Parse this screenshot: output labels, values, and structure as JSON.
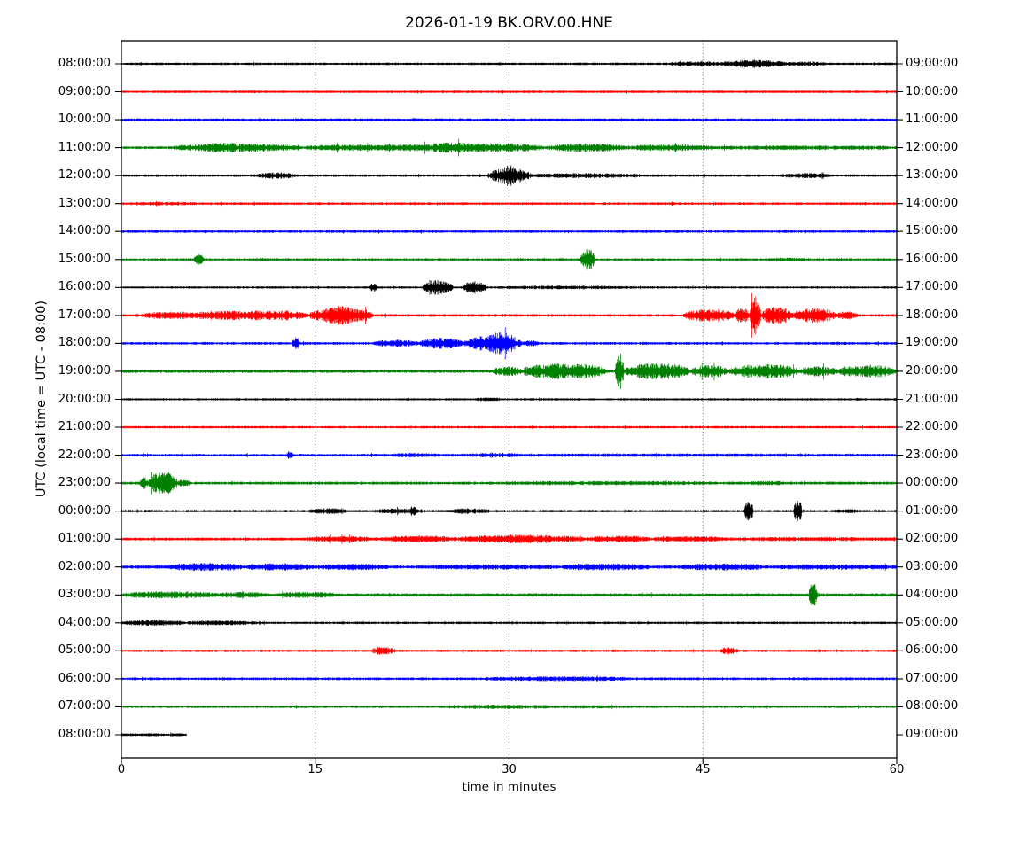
{
  "chart": {
    "title": "2026-01-19 BK.ORV.00.HNE",
    "xlabel": "time in minutes",
    "ylabel": "UTC (local time = UTC - 08:00)"
  },
  "colors": {
    "black": "#000000",
    "red": "#ff0000",
    "blue": "#0000ff",
    "green": "#008000"
  },
  "chart_data": {
    "type": "line",
    "subtype": "seismogram-dayplot",
    "title": "2026-01-19 BK.ORV.00.HNE",
    "date": "2026-01-19",
    "seed_id": "BK.ORV.00.HNE",
    "xlabel": "time in minutes",
    "ylabel": "UTC (local time = UTC - 08:00)",
    "xlim": [
      0,
      60
    ],
    "x_ticks": [
      0,
      15,
      30,
      45,
      60
    ],
    "grid_x": [
      15,
      30,
      45
    ],
    "grid_style": "dotted",
    "interval_minutes": 60,
    "traces": [
      {
        "utc": "08:00:00",
        "right": "09:00:00",
        "color": "black",
        "base": 1.1,
        "dur": 60,
        "events": [
          [
            42,
            47,
            1.0
          ],
          [
            46.5,
            51.5,
            2.4
          ],
          [
            51.5,
            54.5,
            1.0
          ]
        ]
      },
      {
        "utc": "09:00:00",
        "right": "10:00:00",
        "color": "red",
        "base": 1.1,
        "dur": 60,
        "events": []
      },
      {
        "utc": "10:00:00",
        "right": "11:00:00",
        "color": "blue",
        "base": 1.2,
        "dur": 60,
        "events": []
      },
      {
        "utc": "11:00:00",
        "right": "12:00:00",
        "color": "green",
        "base": 1.3,
        "dur": 60,
        "events": [
          [
            4,
            9,
            1.5
          ],
          [
            6,
            14,
            2.4
          ],
          [
            14,
            21,
            1.5
          ],
          [
            20,
            27,
            2.0
          ],
          [
            24,
            33,
            2.6
          ],
          [
            33,
            39,
            2.4
          ],
          [
            39,
            46,
            1.6
          ],
          [
            46,
            60,
            0.7
          ]
        ]
      },
      {
        "utc": "12:00:00",
        "right": "13:00:00",
        "color": "black",
        "base": 1.1,
        "dur": 60,
        "events": [
          [
            10.5,
            13.5,
            1.7
          ],
          [
            28.3,
            31.7,
            5.5
          ],
          [
            29.6,
            30.4,
            3.0
          ],
          [
            31.5,
            40.5,
            1.1
          ],
          [
            51,
            55,
            1.1
          ]
        ]
      },
      {
        "utc": "13:00:00",
        "right": "14:00:00",
        "color": "red",
        "base": 1.15,
        "dur": 60,
        "events": [
          [
            0,
            6,
            0.4
          ]
        ]
      },
      {
        "utc": "14:00:00",
        "right": "15:00:00",
        "color": "blue",
        "base": 1.2,
        "dur": 60,
        "events": []
      },
      {
        "utc": "15:00:00",
        "right": "16:00:00",
        "color": "green",
        "base": 1.1,
        "dur": 60,
        "events": [
          [
            5.6,
            6.4,
            3.4
          ],
          [
            35.5,
            36.7,
            8.0
          ],
          [
            50,
            53,
            0.7
          ]
        ]
      },
      {
        "utc": "16:00:00",
        "right": "17:00:00",
        "color": "black",
        "base": 1.0,
        "dur": 60,
        "events": [
          [
            19.2,
            19.8,
            3.2
          ],
          [
            23.3,
            25.7,
            5.5
          ],
          [
            26.4,
            28.3,
            4.5
          ],
          [
            29,
            40,
            0.6
          ]
        ]
      },
      {
        "utc": "17:00:00",
        "right": "18:00:00",
        "color": "red",
        "base": 1.2,
        "dur": 60,
        "events": [
          [
            1.5,
            7,
            2.2
          ],
          [
            6,
            11,
            2.8
          ],
          [
            10,
            14.5,
            3.0
          ],
          [
            14.5,
            19.5,
            5.5
          ],
          [
            16,
            18,
            2.0
          ],
          [
            43.5,
            47.5,
            4.5
          ],
          [
            47.5,
            48.6,
            5.5
          ],
          [
            48.6,
            49.5,
            16.0
          ],
          [
            49.5,
            52,
            6.5
          ],
          [
            52,
            55.3,
            5.5
          ],
          [
            55.3,
            57,
            2.5
          ]
        ]
      },
      {
        "utc": "18:00:00",
        "right": "19:00:00",
        "color": "blue",
        "base": 1.2,
        "dur": 60,
        "events": [
          [
            13.2,
            13.8,
            4.5
          ],
          [
            19.5,
            23,
            2.0
          ],
          [
            23,
            26.5,
            3.5
          ],
          [
            26.5,
            31,
            6.0
          ],
          [
            28.5,
            30.5,
            3.0
          ],
          [
            31,
            32.3,
            1.5
          ]
        ]
      },
      {
        "utc": "19:00:00",
        "right": "20:00:00",
        "color": "green",
        "base": 1.4,
        "dur": 60,
        "events": [
          [
            28.7,
            31,
            2.8
          ],
          [
            31,
            34,
            4.5
          ],
          [
            33,
            37.5,
            5.5
          ],
          [
            38.2,
            38.9,
            14.0
          ],
          [
            38.9,
            44,
            6.0
          ],
          [
            44,
            47,
            4.0
          ],
          [
            47,
            52.5,
            5.0
          ],
          [
            52.5,
            55.5,
            3.2
          ],
          [
            55.5,
            60,
            4.2
          ]
        ]
      },
      {
        "utc": "20:00:00",
        "right": "21:00:00",
        "color": "black",
        "base": 1.0,
        "dur": 60,
        "events": [
          [
            27.5,
            29.5,
            0.7
          ]
        ]
      },
      {
        "utc": "21:00:00",
        "right": "22:00:00",
        "color": "red",
        "base": 1.1,
        "dur": 60,
        "events": []
      },
      {
        "utc": "22:00:00",
        "right": "23:00:00",
        "color": "blue",
        "base": 1.2,
        "dur": 60,
        "events": [
          [
            12.8,
            13.3,
            2.8
          ],
          [
            16,
            60,
            0.35
          ],
          [
            21,
            24,
            0.5
          ],
          [
            27,
            31,
            0.5
          ]
        ]
      },
      {
        "utc": "23:00:00",
        "right": "00:00:00",
        "color": "green",
        "base": 1.3,
        "dur": 60,
        "events": [
          [
            1.4,
            2.1,
            4.0
          ],
          [
            2.1,
            4.3,
            9.5
          ],
          [
            4.3,
            5.3,
            1.8
          ],
          [
            29,
            46,
            0.55
          ],
          [
            48.5,
            51.5,
            0.8
          ]
        ]
      },
      {
        "utc": "00:00:00",
        "right": "01:00:00",
        "color": "black",
        "base": 1.1,
        "dur": 60,
        "events": [
          [
            14.5,
            17.5,
            1.5
          ],
          [
            19.5,
            23.5,
            1.3
          ],
          [
            22.3,
            22.8,
            2.2
          ],
          [
            25.5,
            28.5,
            1.5
          ],
          [
            48.2,
            48.9,
            9.0
          ],
          [
            52.0,
            52.7,
            9.0
          ],
          [
            55,
            57.5,
            0.7
          ]
        ]
      },
      {
        "utc": "01:00:00",
        "right": "02:00:00",
        "color": "red",
        "base": 1.3,
        "dur": 60,
        "events": [
          [
            14,
            20,
            1.3
          ],
          [
            20,
            26,
            1.8
          ],
          [
            26,
            36,
            2.5
          ],
          [
            36,
            41,
            1.8
          ],
          [
            41,
            47,
            1.3
          ],
          [
            47,
            60,
            0.6
          ]
        ]
      },
      {
        "utc": "02:00:00",
        "right": "03:00:00",
        "color": "blue",
        "base": 1.5,
        "dur": 60,
        "events": [
          [
            3.5,
            9.5,
            2.1
          ],
          [
            9.5,
            15,
            1.7
          ],
          [
            15,
            21,
            1.3
          ],
          [
            23,
            34,
            0.8
          ],
          [
            34,
            41,
            1.6
          ],
          [
            43,
            50,
            1.6
          ],
          [
            50,
            60,
            1.0
          ]
        ]
      },
      {
        "utc": "03:00:00",
        "right": "04:00:00",
        "color": "green",
        "base": 1.4,
        "dur": 60,
        "events": [
          [
            0,
            7.5,
            1.8
          ],
          [
            7.5,
            11.5,
            1.3
          ],
          [
            12,
            16.5,
            1.4
          ],
          [
            53.2,
            53.9,
            9.5
          ]
        ]
      },
      {
        "utc": "04:00:00",
        "right": "05:00:00",
        "color": "black",
        "base": 1.1,
        "dur": 60,
        "events": [
          [
            0,
            5,
            1.4
          ],
          [
            5,
            10.5,
            1.0
          ]
        ]
      },
      {
        "utc": "05:00:00",
        "right": "06:00:00",
        "color": "red",
        "base": 1.1,
        "dur": 60,
        "events": [
          [
            19.4,
            21.2,
            2.4
          ],
          [
            46.3,
            47.7,
            2.2
          ]
        ]
      },
      {
        "utc": "06:00:00",
        "right": "07:00:00",
        "color": "blue",
        "base": 1.2,
        "dur": 60,
        "events": [
          [
            28,
            40,
            0.9
          ]
        ]
      },
      {
        "utc": "07:00:00",
        "right": "08:00:00",
        "color": "green",
        "base": 1.1,
        "dur": 60,
        "events": [
          [
            24.5,
            34,
            0.8
          ],
          [
            34,
            39,
            0.4
          ]
        ]
      },
      {
        "utc": "08:00:00",
        "right": "09:00:00",
        "color": "black",
        "base": 1.3,
        "dur": 5.05,
        "events": []
      }
    ]
  }
}
